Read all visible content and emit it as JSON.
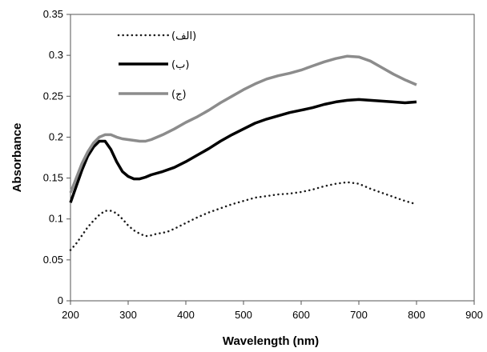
{
  "chart_data": {
    "type": "line",
    "xlabel": "Wavelength (nm)",
    "ylabel": "Absorbance",
    "xlim": [
      200,
      900
    ],
    "ylim": [
      0,
      0.35
    ],
    "x_ticks": [
      200,
      300,
      400,
      500,
      600,
      700,
      800,
      900
    ],
    "y_ticks": [
      0,
      0.05,
      0.1,
      0.15,
      0.2,
      0.25,
      0.3,
      0.35
    ],
    "grid": false,
    "legend_position": "top-left",
    "series": [
      {
        "name": "(الف)",
        "color": "#1a1a1a",
        "style": "dotted",
        "x": [
          200,
          210,
          220,
          230,
          240,
          250,
          260,
          270,
          280,
          290,
          300,
          310,
          320,
          330,
          340,
          350,
          360,
          370,
          380,
          400,
          420,
          440,
          460,
          480,
          500,
          520,
          540,
          560,
          580,
          600,
          620,
          640,
          660,
          680,
          700,
          720,
          740,
          760,
          780,
          800
        ],
        "y": [
          0.062,
          0.07,
          0.08,
          0.09,
          0.098,
          0.105,
          0.11,
          0.11,
          0.107,
          0.1,
          0.092,
          0.086,
          0.082,
          0.079,
          0.08,
          0.082,
          0.083,
          0.085,
          0.088,
          0.095,
          0.102,
          0.108,
          0.113,
          0.118,
          0.122,
          0.126,
          0.128,
          0.13,
          0.131,
          0.133,
          0.136,
          0.14,
          0.143,
          0.145,
          0.143,
          0.137,
          0.132,
          0.127,
          0.122,
          0.118
        ]
      },
      {
        "name": "(ب)",
        "color": "#000000",
        "style": "solid",
        "x": [
          200,
          210,
          220,
          230,
          240,
          250,
          260,
          270,
          280,
          290,
          300,
          310,
          320,
          330,
          340,
          360,
          380,
          400,
          420,
          440,
          460,
          480,
          500,
          520,
          540,
          560,
          580,
          600,
          620,
          640,
          660,
          680,
          700,
          720,
          740,
          760,
          780,
          800
        ],
        "y": [
          0.12,
          0.14,
          0.16,
          0.177,
          0.188,
          0.195,
          0.195,
          0.185,
          0.17,
          0.158,
          0.152,
          0.149,
          0.149,
          0.151,
          0.154,
          0.158,
          0.163,
          0.17,
          0.178,
          0.186,
          0.195,
          0.203,
          0.21,
          0.217,
          0.222,
          0.226,
          0.23,
          0.233,
          0.236,
          0.24,
          0.243,
          0.245,
          0.246,
          0.245,
          0.244,
          0.243,
          0.242,
          0.243
        ]
      },
      {
        "name": "(ج)",
        "color": "#8c8c8c",
        "style": "solid",
        "x": [
          200,
          210,
          220,
          230,
          240,
          250,
          260,
          270,
          280,
          290,
          300,
          310,
          320,
          330,
          340,
          360,
          380,
          400,
          420,
          440,
          460,
          480,
          500,
          520,
          540,
          560,
          580,
          600,
          620,
          640,
          660,
          680,
          700,
          720,
          740,
          760,
          780,
          800
        ],
        "y": [
          0.132,
          0.15,
          0.168,
          0.182,
          0.193,
          0.2,
          0.203,
          0.203,
          0.2,
          0.198,
          0.197,
          0.196,
          0.195,
          0.195,
          0.197,
          0.203,
          0.21,
          0.218,
          0.225,
          0.233,
          0.242,
          0.25,
          0.258,
          0.265,
          0.271,
          0.275,
          0.278,
          0.282,
          0.287,
          0.292,
          0.296,
          0.299,
          0.298,
          0.293,
          0.285,
          0.277,
          0.27,
          0.264
        ]
      }
    ]
  }
}
